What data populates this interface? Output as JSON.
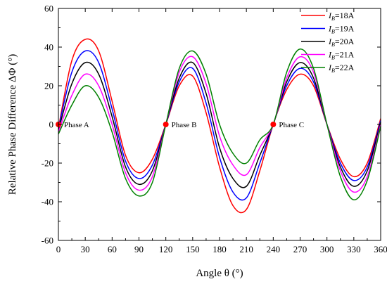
{
  "chart_data": {
    "type": "line",
    "xlabel": "Angle θ (°)",
    "ylabel": "Relative Phase Difference ΔΦ (°)",
    "xlim": [
      0,
      360
    ],
    "ylim": [
      -60,
      60
    ],
    "x_ticks": [
      0,
      30,
      60,
      90,
      120,
      150,
      180,
      210,
      240,
      270,
      300,
      330,
      360
    ],
    "y_ticks": [
      -60,
      -40,
      -20,
      0,
      20,
      40,
      60
    ],
    "grid": false,
    "legend_position": "top-right",
    "series": [
      {
        "name": "IB=18A",
        "legend_main": "I",
        "legend_sub": "B",
        "legend_suffix": "=18A",
        "color": "#ff0000",
        "x": [
          0,
          15,
          30,
          45,
          60,
          75,
          90,
          105,
          120,
          135,
          150,
          165,
          180,
          195,
          210,
          225,
          240,
          255,
          270,
          285,
          300,
          315,
          330,
          345,
          360
        ],
        "y": [
          -2,
          33,
          44,
          38,
          12,
          -16,
          -25,
          -18,
          0,
          20,
          25,
          6,
          -22,
          -42,
          -44,
          -24,
          0,
          18,
          26,
          20,
          0,
          -18,
          -27,
          -20,
          3
        ]
      },
      {
        "name": "IB=19A",
        "legend_main": "I",
        "legend_sub": "B",
        "legend_suffix": "=19A",
        "color": "#0000ff",
        "x": [
          0,
          15,
          30,
          45,
          60,
          75,
          90,
          105,
          120,
          135,
          150,
          165,
          180,
          195,
          210,
          225,
          240,
          255,
          270,
          285,
          300,
          315,
          330,
          345,
          360
        ],
        "y": [
          -2,
          27,
          38,
          32,
          8,
          -19,
          -28,
          -21,
          0,
          22,
          29,
          11,
          -17,
          -35,
          -38,
          -20,
          0,
          20,
          29,
          22,
          0,
          -20,
          -29,
          -22,
          2
        ]
      },
      {
        "name": "IB=20A",
        "legend_main": "I",
        "legend_sub": "B",
        "legend_suffix": "=20A",
        "color": "#000000",
        "x": [
          0,
          15,
          30,
          45,
          60,
          75,
          90,
          105,
          120,
          135,
          150,
          165,
          180,
          195,
          210,
          225,
          240,
          255,
          270,
          285,
          300,
          315,
          330,
          345,
          360
        ],
        "y": [
          -3,
          21,
          32,
          26,
          4,
          -22,
          -31,
          -24,
          0,
          24,
          32,
          16,
          -12,
          -28,
          -32,
          -16,
          0,
          22,
          32,
          24,
          0,
          -22,
          -32,
          -24,
          1
        ]
      },
      {
        "name": "IB=21A",
        "legend_main": "I",
        "legend_sub": "B",
        "legend_suffix": "=21A",
        "color": "#ff00ff",
        "x": [
          0,
          15,
          30,
          45,
          60,
          75,
          90,
          105,
          120,
          135,
          150,
          165,
          180,
          195,
          210,
          225,
          240,
          255,
          270,
          285,
          300,
          315,
          330,
          345,
          360
        ],
        "y": [
          -4,
          15,
          26,
          20,
          0,
          -25,
          -34,
          -27,
          0,
          27,
          35,
          21,
          -6,
          -21,
          -26,
          -12,
          0,
          24,
          35,
          27,
          0,
          -24,
          -35,
          -27,
          0
        ]
      },
      {
        "name": "IB=22A",
        "legend_main": "I",
        "legend_sub": "B",
        "legend_suffix": "=22A",
        "color": "#008000",
        "x": [
          0,
          15,
          30,
          45,
          60,
          75,
          90,
          105,
          120,
          135,
          150,
          165,
          180,
          195,
          210,
          225,
          240,
          255,
          270,
          285,
          300,
          315,
          330,
          345,
          360
        ],
        "y": [
          -5,
          10,
          20,
          14,
          -4,
          -28,
          -37,
          -30,
          0,
          29,
          38,
          26,
          0,
          -15,
          -20,
          -8,
          0,
          27,
          39,
          29,
          0,
          -27,
          -39,
          -29,
          -1
        ]
      }
    ],
    "markers": [
      {
        "label": "Phase A",
        "x": 0,
        "y": 0,
        "color": "#ff0000"
      },
      {
        "label": "Phase B",
        "x": 120,
        "y": 0,
        "color": "#ff0000"
      },
      {
        "label": "Phase C",
        "x": 240,
        "y": 0,
        "color": "#ff0000"
      }
    ]
  }
}
